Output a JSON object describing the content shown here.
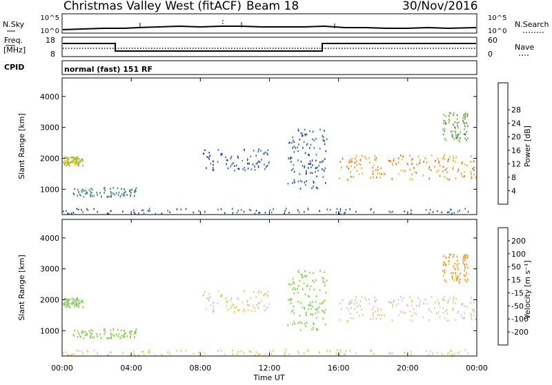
{
  "header": {
    "station": "Christmas Valley West (fitACF)",
    "beam": "Beam 18",
    "date": "30/Nov/2016"
  },
  "top_panels": {
    "nsky_label": "N.Sky",
    "nsearch_label": "N.Search",
    "noise_ticks": [
      "10^5",
      "10^0"
    ],
    "freq_label_1": "Freq.",
    "freq_label_2": "[MHz]",
    "freq_ticks": [
      "18",
      "8"
    ],
    "nave_label": "Nave",
    "nave_ticks": [
      "60",
      "0"
    ],
    "cpid_label": "CPID",
    "cpid_text": "normal (fast) 151 RF"
  },
  "axes": {
    "ylabel": "Slant Range [km]",
    "xlabel": "Time UT",
    "y_ticks": [
      "1000",
      "2000",
      "3000",
      "4000"
    ],
    "x_ticks": [
      "00:00",
      "04:00",
      "08:00",
      "12:00",
      "16:00",
      "20:00",
      "00:00"
    ]
  },
  "power_colorbar": {
    "label": "Power [dB]",
    "ticks": [
      "4",
      "8",
      "12",
      "16",
      "20",
      "24",
      "28"
    ],
    "colors": [
      "#0a1fd9",
      "#223f9a",
      "#3a6ea5",
      "#3f8f5a",
      "#7fb83a",
      "#e6c020",
      "#f29a1a",
      "#ee5a14",
      "#e01010"
    ]
  },
  "velocity_colorbar": {
    "label": "Velocity [m s⁻¹]",
    "ticks": [
      "200",
      "100",
      "50",
      "15",
      "-15",
      "-50",
      "-100",
      "-200"
    ],
    "colors": [
      "#1a2aa8",
      "#2a6ac0",
      "#3aa05a",
      "#7ccc46",
      "#c8c8c0",
      "#f2c040",
      "#f29020",
      "#ee5a14",
      "#e01010"
    ]
  },
  "chart_data": {
    "type": "heatmap",
    "x_range_hours": [
      0,
      24
    ],
    "y_range_km": [
      180,
      4600
    ],
    "freq_mhz": [
      {
        "t_start": 0,
        "t_end": 2.7,
        "value": 15
      },
      {
        "t_start": 2.7,
        "t_end": 15,
        "value": 10
      },
      {
        "t_start": 15,
        "t_end": 24,
        "value": 15
      }
    ],
    "echo_regions": [
      {
        "t_start": 0,
        "t_end": 1.2,
        "r_start": 1750,
        "r_end": 2050,
        "power_db": 20,
        "velocity": 20
      },
      {
        "t_start": 0.6,
        "t_end": 4.3,
        "r_start": 750,
        "r_end": 1050,
        "power_db": 12,
        "velocity": 30
      },
      {
        "t_start": 0,
        "t_end": 24,
        "r_start": 200,
        "r_end": 380,
        "power_db": 8,
        "velocity": -20
      },
      {
        "t_start": 8,
        "t_end": 12,
        "r_start": 1600,
        "r_end": 2300,
        "power_db": 8,
        "velocity": -10
      },
      {
        "t_start": 13,
        "t_end": 15.3,
        "r_start": 1000,
        "r_end": 3000,
        "power_db": 8,
        "velocity": 30
      },
      {
        "t_start": 16,
        "t_end": 24,
        "r_start": 1300,
        "r_end": 2100,
        "power_db": 26,
        "velocity": -5
      },
      {
        "t_start": 22,
        "t_end": 23.5,
        "r_start": 2500,
        "r_end": 3500,
        "power_db": 16,
        "velocity": -60
      }
    ]
  }
}
